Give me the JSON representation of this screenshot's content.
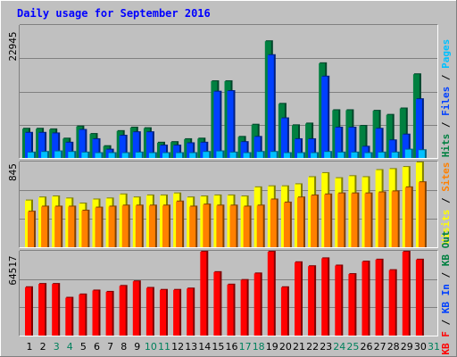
{
  "title": "Daily usage for September 2016",
  "colors": {
    "background": "#c0c0c0",
    "frame_light": "#ffffff",
    "frame_dark": "#808080",
    "grid": "#808080",
    "title": "#0000ff",
    "hits_fill": "#008040",
    "hits_side": "#00442a",
    "files_fill": "#0040ff",
    "files_side": "#00207f",
    "pages_fill": "#00c0ff",
    "pages_side": "#006080",
    "visits_fill": "#ffff00",
    "visits_side": "#808000",
    "sites_fill": "#ff8000",
    "sites_side": "#804000",
    "kbf_fill": "#ff0000",
    "kbf_side": "#800000",
    "weekday_label": "#000000",
    "weekend_label": "#00805c"
  },
  "chart_data": [
    {
      "type": "bar",
      "panel": "hits-files-pages",
      "max_label": "22945",
      "legend": [
        {
          "text": "Hits",
          "color": "#008040"
        },
        {
          "text": "Files",
          "color": "#0040ff"
        },
        {
          "text": "Pages",
          "color": "#00c0ff"
        }
      ],
      "separator": " / ",
      "ylim": [
        0,
        22945
      ],
      "x": [
        1,
        2,
        3,
        4,
        5,
        6,
        7,
        8,
        9,
        10,
        11,
        12,
        13,
        14,
        15,
        16,
        17,
        18,
        19,
        20,
        21,
        22,
        23,
        24,
        25,
        26,
        27,
        28,
        29,
        30,
        31
      ],
      "series": [
        {
          "name": "Hits",
          "values": [
            5200,
            5200,
            5100,
            3500,
            5600,
            4300,
            2200,
            4800,
            5400,
            5300,
            2800,
            2900,
            3400,
            3500,
            13400,
            13400,
            3800,
            5900,
            20300,
            9500,
            5800,
            6100,
            16500,
            8400,
            8400,
            5700,
            8300,
            7600,
            8700,
            14600,
            0
          ]
        },
        {
          "name": "Files",
          "values": [
            4500,
            4500,
            4400,
            2800,
            5000,
            3400,
            1600,
            4000,
            4600,
            4600,
            2300,
            2300,
            2700,
            2800,
            11600,
            11700,
            2900,
            3800,
            17900,
            7000,
            3400,
            3400,
            14200,
            5400,
            5400,
            2100,
            5200,
            3200,
            4200,
            10300,
            0
          ]
        },
        {
          "name": "Pages",
          "values": [
            1100,
            1200,
            1300,
            1200,
            1100,
            1000,
            1000,
            1000,
            1100,
            1000,
            1000,
            1000,
            1000,
            1200,
            1300,
            1100,
            1000,
            1200,
            1200,
            1000,
            1000,
            1000,
            1200,
            1100,
            1100,
            1000,
            1100,
            1100,
            1600,
            1500,
            0
          ]
        }
      ]
    },
    {
      "type": "bar",
      "panel": "visits-sites",
      "max_label": "845",
      "legend": [
        {
          "text": "Visits",
          "color": "#ffff00"
        },
        {
          "text": "Sites",
          "color": "#ff8000"
        }
      ],
      "separator": " / ",
      "ylim": [
        0,
        845
      ],
      "x": [
        1,
        2,
        3,
        4,
        5,
        6,
        7,
        8,
        9,
        10,
        11,
        12,
        13,
        14,
        15,
        16,
        17,
        18,
        19,
        20,
        21,
        22,
        23,
        24,
        25,
        26,
        27,
        28,
        29,
        30,
        31
      ],
      "series": [
        {
          "name": "Visits",
          "values": [
            470,
            500,
            510,
            490,
            440,
            480,
            490,
            530,
            500,
            520,
            520,
            540,
            500,
            510,
            520,
            520,
            510,
            600,
            610,
            610,
            630,
            700,
            740,
            690,
            710,
            700,
            770,
            780,
            800,
            860,
            0
          ]
        },
        {
          "name": "Sites",
          "values": [
            360,
            410,
            410,
            410,
            370,
            400,
            410,
            420,
            420,
            420,
            420,
            460,
            410,
            430,
            420,
            420,
            410,
            420,
            480,
            450,
            500,
            520,
            530,
            540,
            540,
            540,
            550,
            560,
            600,
            650,
            0
          ]
        }
      ]
    },
    {
      "type": "bar",
      "panel": "kbytes",
      "max_label": "64517",
      "legend": [
        {
          "text": "KB F",
          "color": "#ff0000"
        },
        {
          "text": "KB In",
          "color": "#0040ff"
        },
        {
          "text": "KB Out",
          "color": "#008040"
        }
      ],
      "separator": " / ",
      "ylim": [
        0,
        64517
      ],
      "x": [
        1,
        2,
        3,
        4,
        5,
        6,
        7,
        8,
        9,
        10,
        11,
        12,
        13,
        14,
        15,
        16,
        17,
        18,
        19,
        20,
        21,
        22,
        23,
        24,
        25,
        26,
        27,
        28,
        29,
        30,
        31
      ],
      "series": [
        {
          "name": "KB F",
          "values": [
            37500,
            40000,
            40000,
            29500,
            32000,
            35000,
            34000,
            38500,
            42000,
            37000,
            35500,
            35500,
            36500,
            64500,
            49000,
            39500,
            43000,
            48000,
            64500,
            37500,
            56500,
            53500,
            59500,
            54000,
            47500,
            57000,
            58500,
            50500,
            65000,
            58500,
            0
          ]
        }
      ]
    }
  ],
  "x_labels": [
    {
      "text": "1",
      "weekend": false
    },
    {
      "text": "2",
      "weekend": false
    },
    {
      "text": "3",
      "weekend": true
    },
    {
      "text": "4",
      "weekend": true
    },
    {
      "text": "5",
      "weekend": false
    },
    {
      "text": "6",
      "weekend": false
    },
    {
      "text": "7",
      "weekend": false
    },
    {
      "text": "8",
      "weekend": false
    },
    {
      "text": "9",
      "weekend": false
    },
    {
      "text": "10",
      "weekend": true
    },
    {
      "text": "11",
      "weekend": true
    },
    {
      "text": "12",
      "weekend": false
    },
    {
      "text": "13",
      "weekend": false
    },
    {
      "text": "14",
      "weekend": false
    },
    {
      "text": "15",
      "weekend": false
    },
    {
      "text": "16",
      "weekend": false
    },
    {
      "text": "17",
      "weekend": true
    },
    {
      "text": "18",
      "weekend": true
    },
    {
      "text": "19",
      "weekend": false
    },
    {
      "text": "20",
      "weekend": false
    },
    {
      "text": "21",
      "weekend": false
    },
    {
      "text": "22",
      "weekend": false
    },
    {
      "text": "23",
      "weekend": false
    },
    {
      "text": "24",
      "weekend": true
    },
    {
      "text": "25",
      "weekend": true
    },
    {
      "text": "26",
      "weekend": false
    },
    {
      "text": "27",
      "weekend": false
    },
    {
      "text": "28",
      "weekend": false
    },
    {
      "text": "29",
      "weekend": false
    },
    {
      "text": "30",
      "weekend": false
    },
    {
      "text": "31",
      "weekend": true
    }
  ]
}
